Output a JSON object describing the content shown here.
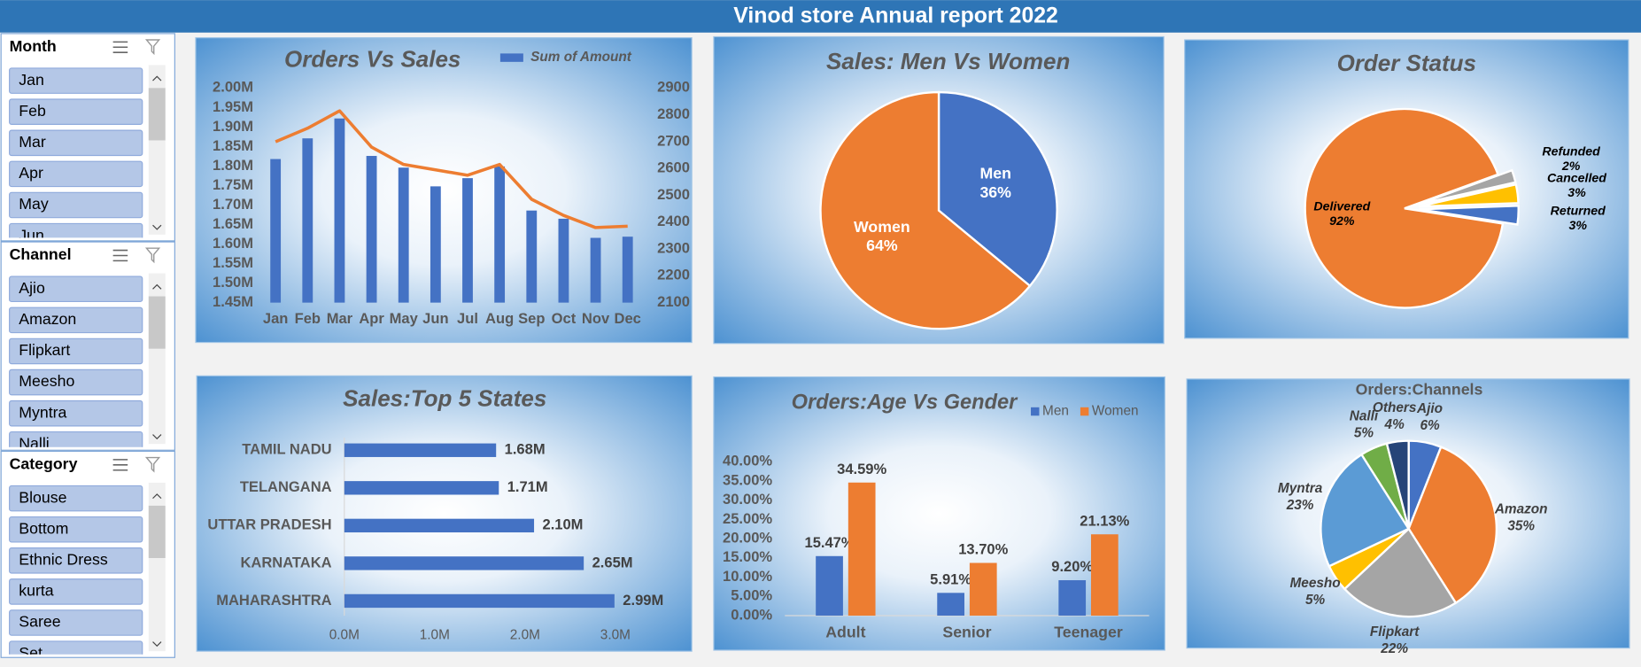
{
  "header": {
    "title": "Vinod store Annual report 2022"
  },
  "slicers": [
    {
      "title": "Month",
      "items": [
        "Jan",
        "Feb",
        "Mar",
        "Apr",
        "May",
        "Jun"
      ]
    },
    {
      "title": "Channel",
      "items": [
        "Ajio",
        "Amazon",
        "Flipkart",
        "Meesho",
        "Myntra",
        "Nalli"
      ]
    },
    {
      "title": "Category",
      "items": [
        "Blouse",
        "Bottom",
        "Ethnic Dress",
        "kurta",
        "Saree",
        "Set"
      ]
    }
  ],
  "chart_data": [
    {
      "type": "combo",
      "title": "Orders Vs Sales",
      "legend": "top-right",
      "categories": [
        "Jan",
        "Feb",
        "Mar",
        "Apr",
        "May",
        "Jun",
        "Jul",
        "Aug",
        "Sep",
        "Oct",
        "Nov",
        "Dec"
      ],
      "series": [
        {
          "name": "Sum of Amount",
          "type": "bar",
          "color": "#4472c4",
          "values": [
            1818000,
            1871000,
            1922000,
            1826000,
            1796000,
            1748000,
            1769000,
            1799000,
            1686000,
            1665000,
            1616000,
            1619000
          ]
        },
        {
          "type": "line",
          "axis": "y2",
          "color": "#ed7d31",
          "values": [
            2700,
            2750,
            2815,
            2680,
            2615,
            2595,
            2575,
            2615,
            2485,
            2425,
            2380,
            2385
          ]
        }
      ],
      "ylim": [
        1450000,
        2000000
      ],
      "yticks": [
        {
          "value": 1450000,
          "label": "1.45M"
        },
        {
          "value": 1500000,
          "label": "1.50M"
        },
        {
          "value": 1550000,
          "label": "1.55M"
        },
        {
          "value": 1600000,
          "label": "1.60M"
        },
        {
          "value": 1650000,
          "label": "1.65M"
        },
        {
          "value": 1700000,
          "label": "1.70M"
        },
        {
          "value": 1750000,
          "label": "1.75M"
        },
        {
          "value": 1800000,
          "label": "1.80M"
        },
        {
          "value": 1850000,
          "label": "1.85M"
        },
        {
          "value": 1900000,
          "label": "1.90M"
        },
        {
          "value": 1950000,
          "label": "1.95M"
        },
        {
          "value": 2000000,
          "label": "2.00M"
        }
      ],
      "y2lim": [
        2100,
        2900
      ],
      "y2ticks": [
        2100,
        2200,
        2300,
        2400,
        2500,
        2600,
        2700,
        2800,
        2900
      ]
    },
    {
      "type": "pie",
      "title": "Sales: Men Vs Women",
      "categories": [
        "Men",
        "Women"
      ],
      "values": [
        36,
        64
      ],
      "value_labels": [
        "36%",
        "64%"
      ],
      "colors": [
        "#4472c4",
        "#ed7d31"
      ]
    },
    {
      "type": "pie",
      "title": "Order Status",
      "categories": [
        "Delivered",
        "Refunded",
        "Cancelled",
        "Returned"
      ],
      "values": [
        92,
        2,
        3,
        3
      ],
      "value_labels": [
        "92%",
        "2%",
        "3%",
        "3%"
      ],
      "colors": [
        "#ed7d31",
        "#a5a5a5",
        "#ffc000",
        "#4472c4"
      ]
    },
    {
      "type": "hbar",
      "title": "Sales:Top 5 States",
      "color": "#4472c4",
      "categories": [
        "TAMIL NADU",
        "TELANGANA",
        "UTTAR PRADESH",
        "KARNATAKA",
        "MAHARASHTRA"
      ],
      "values": [
        1680000,
        1710000,
        2100000,
        2650000,
        2990000
      ],
      "value_labels": [
        "1.68M",
        "1.71M",
        "2.10M",
        "2.65M",
        "2.99M"
      ],
      "xlim": [
        0,
        3000000
      ],
      "xticks": [
        {
          "value": 0,
          "label": "0.0M"
        },
        {
          "value": 1000000,
          "label": "1.0M"
        },
        {
          "value": 2000000,
          "label": "2.0M"
        },
        {
          "value": 3000000,
          "label": "3.0M"
        }
      ]
    },
    {
      "type": "bar",
      "title": "Orders:Age Vs Gender",
      "legend": "top-right",
      "categories": [
        "Adult",
        "Senior",
        "Teenager"
      ],
      "series": [
        {
          "name": "Men",
          "color": "#4472c4",
          "values": [
            15.47,
            5.91,
            9.2
          ],
          "value_labels": [
            "15.47%",
            "5.91%",
            "9.20%"
          ]
        },
        {
          "name": "Women",
          "color": "#ed7d31",
          "values": [
            34.59,
            13.7,
            21.13
          ],
          "value_labels": [
            "34.59%",
            "13.70%",
            "21.13%"
          ]
        }
      ],
      "ylim": [
        0,
        40
      ],
      "yticks": [
        {
          "value": 0,
          "label": "0.00%"
        },
        {
          "value": 5,
          "label": "5.00%"
        },
        {
          "value": 10,
          "label": "10.00%"
        },
        {
          "value": 15,
          "label": "15.00%"
        },
        {
          "value": 20,
          "label": "20.00%"
        },
        {
          "value": 25,
          "label": "25.00%"
        },
        {
          "value": 30,
          "label": "30.00%"
        },
        {
          "value": 35,
          "label": "35.00%"
        },
        {
          "value": 40,
          "label": "40.00%"
        }
      ]
    },
    {
      "type": "pie",
      "title": "Orders:Channels",
      "categories": [
        "Ajio",
        "Amazon",
        "Flipkart",
        "Meesho",
        "Myntra",
        "Nalli",
        "Others"
      ],
      "values": [
        6,
        35,
        22,
        5,
        23,
        5,
        4
      ],
      "value_labels": [
        "6%",
        "35%",
        "22%",
        "5%",
        "23%",
        "5%",
        "4%"
      ],
      "colors": [
        "#4472c4",
        "#ed7d31",
        "#a5a5a5",
        "#ffc000",
        "#5b9bd5",
        "#70ad47",
        "#264478"
      ]
    }
  ]
}
